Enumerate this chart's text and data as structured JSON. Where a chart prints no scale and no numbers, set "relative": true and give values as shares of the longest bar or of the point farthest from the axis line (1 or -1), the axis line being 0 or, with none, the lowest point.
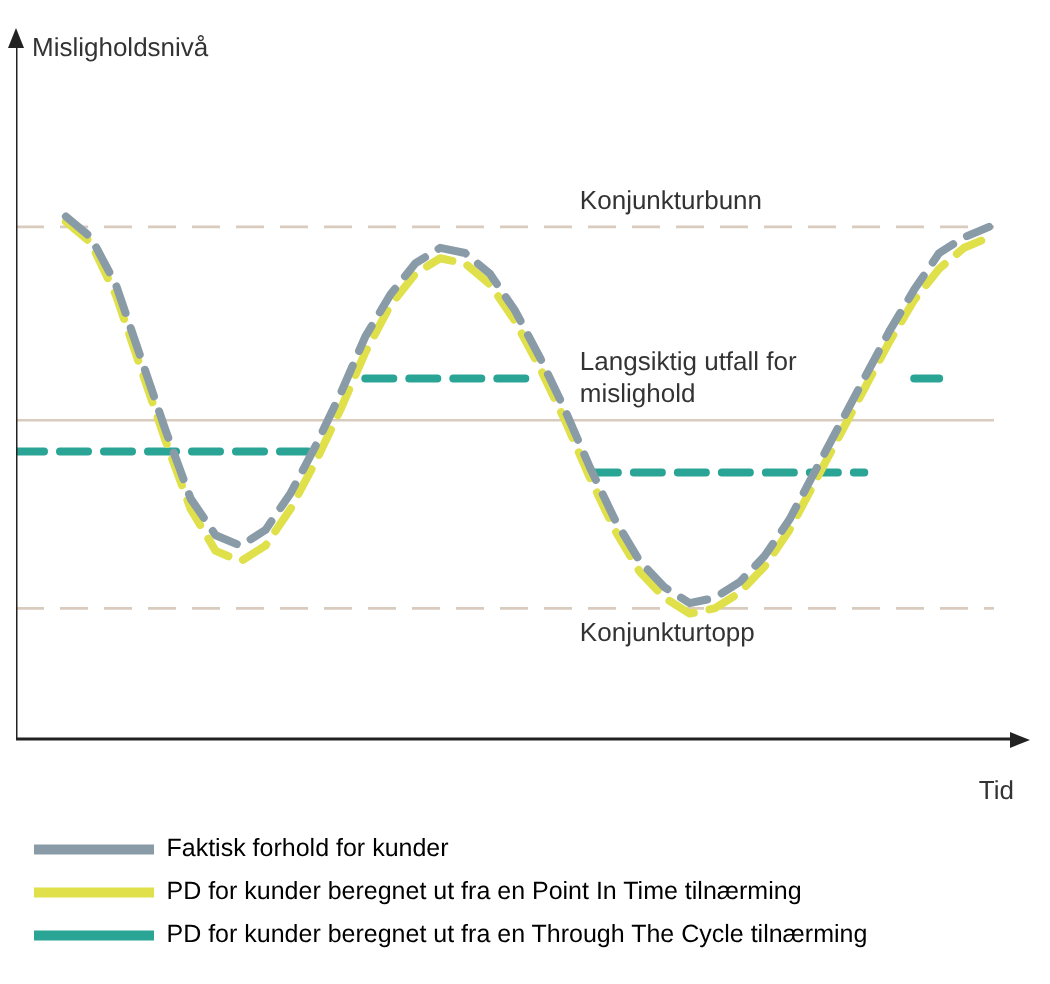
{
  "chart_data": {
    "type": "line",
    "relative": true,
    "xlabel": "Tid",
    "annotations": [
      "Misligholdsnivå"
    ],
    "legend": "bottom",
    "marker": "none",
    "line_style": "dashed",
    "categories": [
      null,
      null,
      null,
      null,
      null,
      null,
      null,
      null,
      null,
      null,
      null,
      null,
      null,
      null,
      null,
      null,
      null,
      null,
      null,
      null,
      null,
      null,
      null,
      null,
      null,
      null,
      null,
      null,
      null,
      null,
      null,
      null,
      null,
      null,
      null,
      null,
      null,
      null,
      null,
      null,
      null
    ],
    "series": [
      {
        "name": "Faktisk forhold for kunder",
        "color": "#8a9ba8",
        "values": [
          null,
          null,
          1.0,
          0.96,
          0.87,
          0.73,
          0.59,
          0.46,
          0.39,
          0.37,
          0.4,
          0.47,
          0.56,
          0.66,
          0.77,
          0.85,
          0.91,
          0.94,
          0.93,
          0.89,
          0.82,
          0.73,
          0.63,
          0.52,
          0.42,
          0.34,
          0.29,
          0.26,
          0.27,
          0.3,
          0.35,
          0.42,
          0.51,
          0.6,
          0.69,
          0.78,
          0.86,
          0.93,
          0.96,
          0.98,
          null
        ]
      },
      {
        "name": "PD for kunder beregnet ut fra en Point In Time tilnærming",
        "color": "#dfe04a",
        "values": [
          null,
          null,
          0.99,
          0.95,
          0.85,
          0.71,
          0.57,
          0.44,
          0.36,
          0.34,
          0.37,
          0.44,
          0.53,
          0.63,
          0.74,
          0.83,
          0.89,
          0.92,
          0.91,
          0.87,
          0.8,
          0.71,
          0.61,
          0.5,
          0.4,
          0.32,
          0.27,
          0.24,
          0.25,
          0.28,
          0.33,
          0.4,
          0.49,
          0.58,
          0.67,
          0.76,
          0.84,
          0.9,
          0.94,
          0.96,
          null
        ]
      },
      {
        "name": "PD for kunder beregnet ut fra en Through The Cycle tilnærming",
        "color": "#2aa595",
        "values": [
          0.55,
          0.55,
          0.55,
          0.55,
          0.55,
          0.55,
          0.55,
          0.55,
          0.55,
          0.55,
          0.55,
          0.55,
          0.55,
          null,
          0.69,
          0.69,
          0.69,
          0.69,
          0.69,
          0.69,
          0.69,
          0.69,
          null,
          0.51,
          0.51,
          0.51,
          0.51,
          0.51,
          0.51,
          0.51,
          0.51,
          0.51,
          0.51,
          0.51,
          0.51,
          null,
          0.69,
          0.69,
          null,
          null,
          null
        ]
      }
    ],
    "ref_lines": [
      {
        "axis": "y",
        "value": 0.98,
        "label": "Konjunkturbunn",
        "color": "#d9cbbd",
        "line_style": "dashed"
      },
      {
        "axis": "y",
        "value": 0.61,
        "label": "Langsiktig utfall for mislighold",
        "color": "#d9cbbd",
        "line_style": "solid"
      },
      {
        "axis": "y",
        "value": 0.25,
        "label": "Konjunkturtopp",
        "color": "#d9cbbd",
        "line_style": "dashed"
      }
    ]
  }
}
